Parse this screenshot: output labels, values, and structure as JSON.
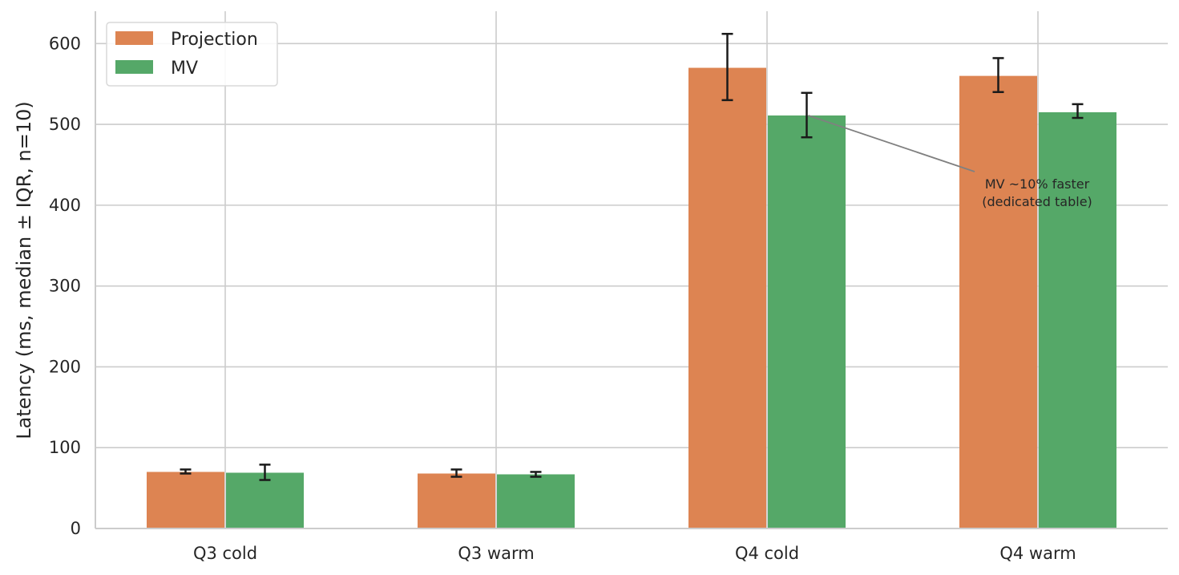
{
  "chart_data": {
    "type": "bar",
    "categories": [
      "Q3 cold",
      "Q3 warm",
      "Q4 cold",
      "Q4 warm"
    ],
    "series": [
      {
        "name": "Projection",
        "color": "#dd8452",
        "values": [
          70,
          68,
          570,
          560
        ],
        "err_low": [
          68,
          64,
          530,
          540
        ],
        "err_high": [
          73,
          73,
          612,
          582
        ]
      },
      {
        "name": "MV",
        "color": "#55a868",
        "values": [
          69,
          67,
          511,
          515
        ],
        "err_low": [
          60,
          64,
          484,
          508
        ],
        "err_high": [
          79,
          70,
          539,
          525
        ]
      }
    ],
    "xlabel": "",
    "ylabel": "Latency (ms, median ± IQR, n=10)",
    "ylim": [
      0,
      640
    ],
    "yticks": [
      0,
      100,
      200,
      300,
      400,
      500,
      600
    ],
    "grid": true,
    "legend_position": "top-left",
    "annotation": {
      "lines": [
        "MV ~10% faster",
        "(dedicated table)"
      ],
      "target_category": "Q4 cold",
      "target_series": "MV",
      "target_value": 511
    }
  }
}
